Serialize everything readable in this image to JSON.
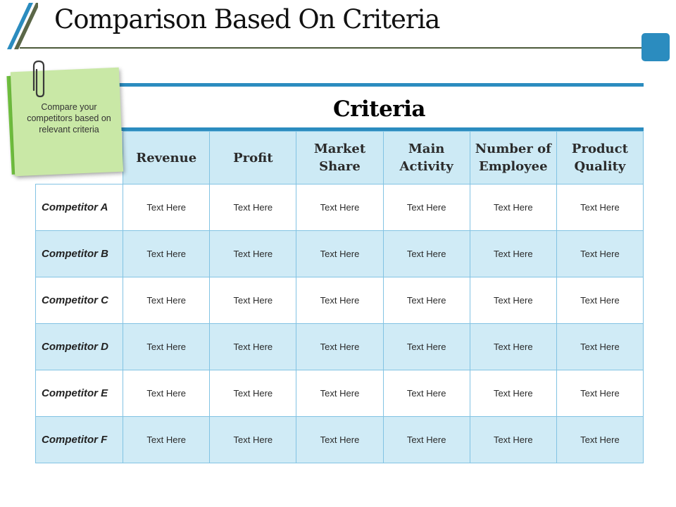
{
  "slide": {
    "title": "Comparison Based On Criteria",
    "accent_color": "#2b8cbf",
    "rule_color": "#4c5a3a"
  },
  "note": {
    "text": "Compare your competitors based on relevant criteria",
    "front_color": "#c9e8a6",
    "back_color": "#6fbe3e",
    "icon": "paperclip-icon"
  },
  "table": {
    "title": "Criteria",
    "header_bg": "#cdeaf5",
    "stripe_bg": "#d0ebf6",
    "columns": [
      "Revenue",
      "Profit",
      "Market Share",
      "Main Activity",
      "Number of Employee",
      "Product Quality"
    ],
    "rows": [
      {
        "label": "Competitor A",
        "cells": [
          "Text Here",
          "Text Here",
          "Text Here",
          "Text Here",
          "Text Here",
          "Text Here"
        ]
      },
      {
        "label": "Competitor B",
        "cells": [
          "Text Here",
          "Text Here",
          "Text Here",
          "Text Here",
          "Text Here",
          "Text Here"
        ]
      },
      {
        "label": "Competitor C",
        "cells": [
          "Text Here",
          "Text Here",
          "Text Here",
          "Text Here",
          "Text Here",
          "Text Here"
        ]
      },
      {
        "label": "Competitor D",
        "cells": [
          "Text Here",
          "Text Here",
          "Text Here",
          "Text Here",
          "Text Here",
          "Text Here"
        ]
      },
      {
        "label": "Competitor E",
        "cells": [
          "Text Here",
          "Text Here",
          "Text Here",
          "Text Here",
          "Text Here",
          "Text Here"
        ]
      },
      {
        "label": "Competitor F",
        "cells": [
          "Text Here",
          "Text Here",
          "Text Here",
          "Text Here",
          "Text Here",
          "Text Here"
        ]
      }
    ]
  }
}
